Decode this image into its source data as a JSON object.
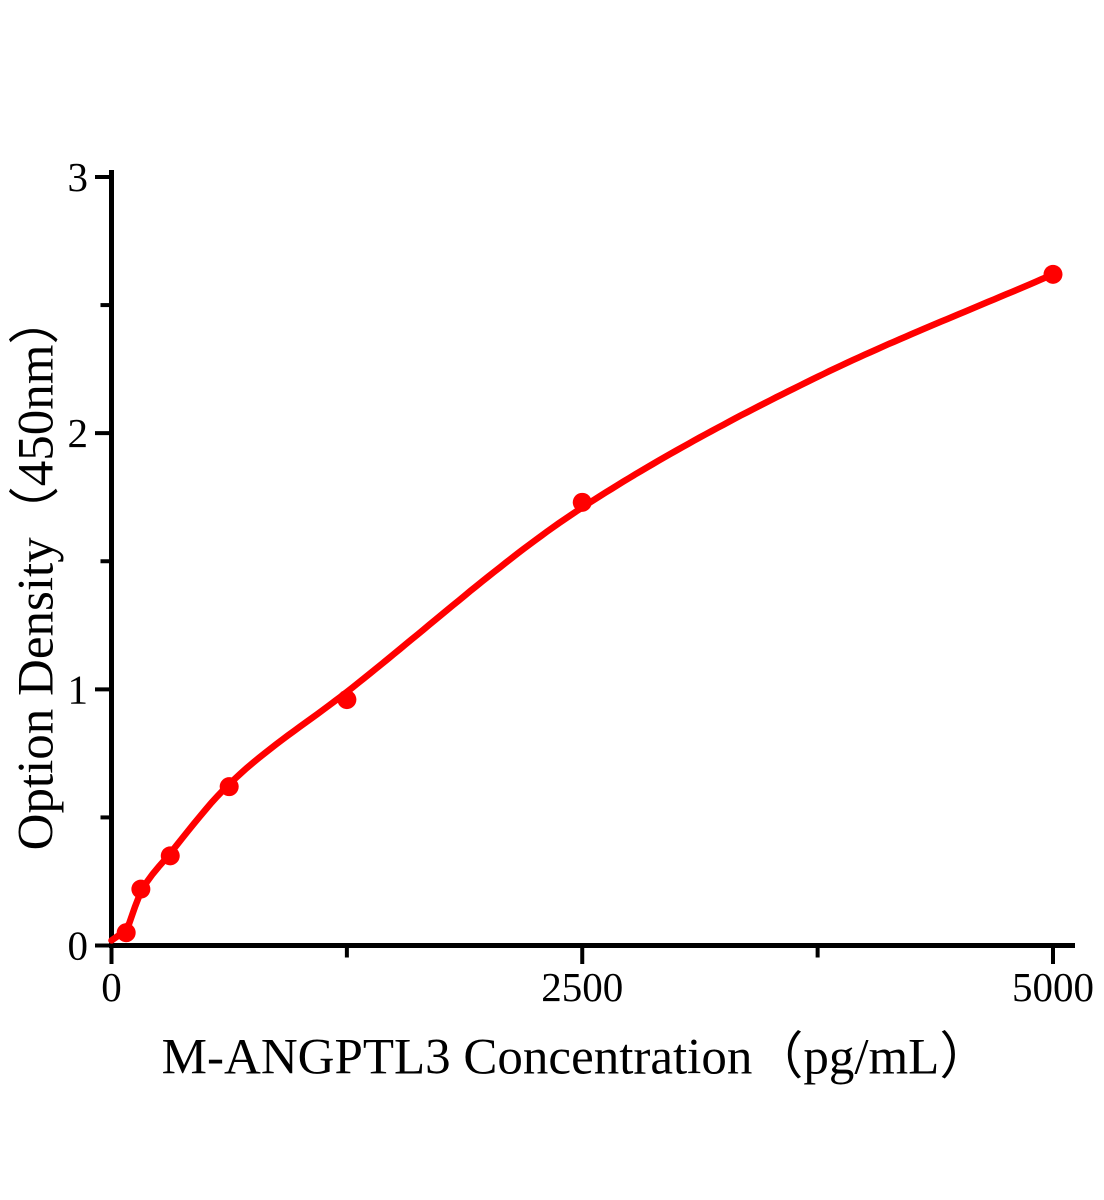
{
  "figure": {
    "background_color": "#ffffff",
    "axis_color": "#000000",
    "accent_color": "#ff0000"
  },
  "chart_data": {
    "type": "scatter",
    "title": "",
    "xlabel": "M-ANGPTL3 Concentration（pg/mL）",
    "ylabel": "Option Density（450nm）",
    "xlim": [
      0,
      5000
    ],
    "ylim": [
      0,
      3
    ],
    "grid": false,
    "legend": false,
    "x_major_ticks": [
      0,
      2500,
      5000
    ],
    "x_minor_ticks": [
      1250,
      3750
    ],
    "y_major_ticks": [
      0,
      1,
      2,
      3
    ],
    "y_minor_ticks": [
      0.5,
      1.5,
      2.5
    ],
    "series": [
      {
        "name": "standard-points",
        "kind": "scatter",
        "color": "#ff0000",
        "x": [
          78,
          156,
          312,
          625,
          1250,
          2500,
          5000
        ],
        "y": [
          0.05,
          0.22,
          0.35,
          0.62,
          0.96,
          1.73,
          2.62
        ]
      },
      {
        "name": "fitted-curve",
        "kind": "line",
        "color": "#ff0000",
        "x": [
          0,
          78,
          156,
          312,
          625,
          1250,
          2500,
          3750,
          5000
        ],
        "y": [
          0.02,
          0.065,
          0.21,
          0.36,
          0.63,
          0.99,
          1.71,
          2.22,
          2.62
        ]
      }
    ]
  }
}
